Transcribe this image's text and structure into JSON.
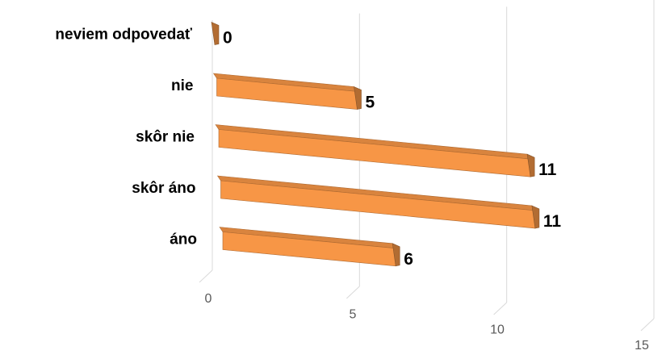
{
  "chart_data": {
    "type": "bar",
    "orientation": "horizontal",
    "three_d": true,
    "categories": [
      "neviem odpovedať",
      "nie",
      "skôr nie",
      "skôr áno",
      "áno"
    ],
    "values": [
      0,
      5,
      11,
      11,
      6
    ],
    "color": "#f79646",
    "xlim": [
      0,
      15
    ],
    "xticks": [
      0,
      5,
      10,
      15
    ],
    "grid": true
  }
}
